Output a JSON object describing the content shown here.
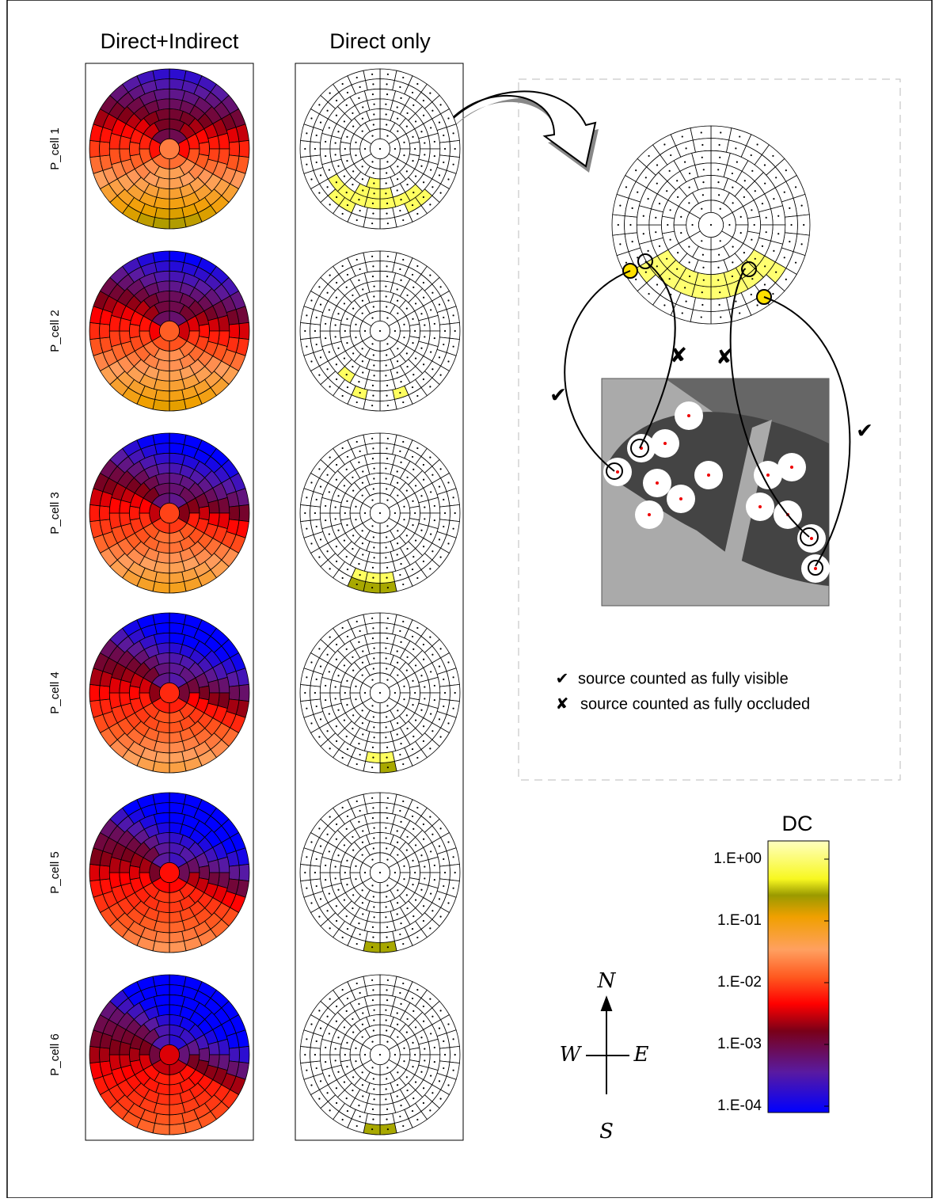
{
  "columns": [
    "Direct+Indirect",
    "Direct only"
  ],
  "rows": [
    "P_cell 1",
    "P_cell 2",
    "P_cell 3",
    "P_cell 4",
    "P_cell 5",
    "P_cell 6"
  ],
  "markers": [
    "✔",
    "✘",
    "✘",
    "✔"
  ],
  "legend": [
    {
      "symbol": "✔",
      "text": "source counted as fully visible"
    },
    {
      "symbol": "✘",
      "text": "source counted as fully occluded"
    }
  ],
  "colorbar": {
    "title": "DC",
    "ticks": [
      "1.E+00",
      "1.E-01",
      "1.E-02",
      "1.E-03",
      "1.E-04"
    ]
  },
  "compass": {
    "north": "N",
    "west": "W",
    "east": "E",
    "south": "S"
  }
}
